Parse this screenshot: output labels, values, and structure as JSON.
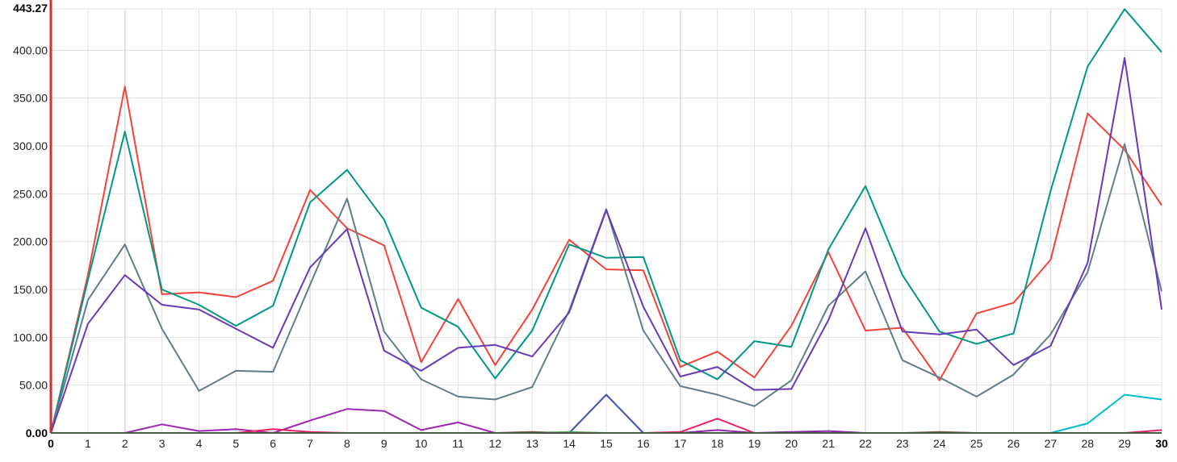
{
  "chart_data": {
    "type": "line",
    "title": "",
    "xlabel": "",
    "ylabel": "",
    "x": [
      0,
      1,
      2,
      3,
      4,
      5,
      6,
      7,
      8,
      9,
      10,
      11,
      12,
      13,
      14,
      15,
      16,
      17,
      18,
      19,
      20,
      21,
      22,
      23,
      24,
      25,
      26,
      27,
      28,
      29,
      30
    ],
    "xlim": [
      0,
      30
    ],
    "ylim": [
      0,
      443.27
    ],
    "y_max_label": "443.27",
    "y_ticks": [
      "0.00",
      "50.00",
      "100.00",
      "150.00",
      "200.00",
      "250.00",
      "300.00",
      "350.00",
      "400.00"
    ],
    "x_ticks": [
      "0",
      "1",
      "2",
      "3",
      "4",
      "5",
      "6",
      "7",
      "8",
      "9",
      "10",
      "11",
      "12",
      "13",
      "14",
      "15",
      "16",
      "17",
      "18",
      "19",
      "20",
      "21",
      "22",
      "23",
      "24",
      "25",
      "26",
      "27",
      "28",
      "29",
      "30"
    ],
    "grid": true,
    "series": [
      {
        "color": "#f44336",
        "values": [
          0,
          165,
          362,
          145,
          147,
          142,
          159,
          254,
          214,
          196,
          74,
          140,
          71,
          129,
          202,
          171,
          170,
          69,
          85,
          58,
          112,
          189,
          107,
          110,
          55,
          125,
          136,
          181,
          334,
          296,
          238
        ]
      },
      {
        "color": "#009688",
        "values": [
          0,
          160,
          315,
          150,
          134,
          112,
          133,
          241,
          275,
          223,
          131,
          111,
          57,
          107,
          197,
          183,
          184,
          76,
          56,
          96,
          90,
          192,
          258,
          165,
          106,
          93,
          104,
          253,
          383,
          443,
          398
        ]
      },
      {
        "color": "#607d8b",
        "values": [
          0,
          139,
          197,
          109,
          44,
          65,
          64,
          155,
          245,
          106,
          56,
          38,
          35,
          48,
          128,
          234,
          107,
          49,
          40,
          28,
          55,
          133,
          169,
          76,
          58,
          38,
          61,
          103,
          168,
          302,
          148
        ]
      },
      {
        "color": "#673ab7",
        "values": [
          0,
          114,
          165,
          134,
          129,
          109,
          89,
          173,
          213,
          86,
          65,
          89,
          92,
          80,
          126,
          233,
          132,
          59,
          69,
          45,
          46,
          118,
          214,
          106,
          103,
          108,
          71,
          91,
          178,
          392,
          129
        ]
      },
      {
        "color": "#9c27b0",
        "values": [
          0,
          0,
          0,
          9,
          2,
          4,
          0,
          13,
          25,
          23,
          3,
          11,
          0,
          0,
          0,
          0,
          0,
          0,
          0,
          0,
          0,
          0,
          0,
          0,
          0,
          0,
          0,
          0,
          0,
          0,
          0
        ]
      },
      {
        "color": "#3f51b5",
        "values": [
          0,
          0,
          0,
          0,
          0,
          0,
          0,
          0,
          0,
          0,
          0,
          0,
          0,
          0,
          0,
          40,
          0,
          0,
          0,
          0,
          0,
          0,
          0,
          0,
          0,
          0,
          0,
          0,
          0,
          0,
          0
        ]
      },
      {
        "color": "#e91e63",
        "values": [
          0,
          0,
          0,
          0,
          0,
          0,
          4,
          1,
          0,
          0,
          0,
          0,
          0,
          0,
          0,
          0,
          0,
          1,
          15,
          0,
          0,
          0,
          0,
          0,
          0,
          0,
          0,
          0,
          0,
          0,
          3
        ]
      },
      {
        "color": "#00bcd4",
        "values": [
          0,
          0,
          0,
          0,
          0,
          0,
          0,
          0,
          0,
          0,
          0,
          0,
          0,
          0,
          0,
          0,
          0,
          0,
          0,
          0,
          0,
          0,
          0,
          0,
          0,
          0,
          0,
          0,
          10,
          40,
          35
        ]
      },
      {
        "color": "#8e24aa",
        "values": [
          0,
          0,
          0,
          0,
          0,
          0,
          0,
          0,
          0,
          0,
          0,
          0,
          0,
          0,
          0,
          0,
          0,
          0,
          3,
          0,
          1,
          2,
          0,
          0,
          0,
          0,
          0,
          0,
          0,
          0,
          0
        ]
      },
      {
        "color": "#795548",
        "values": [
          0,
          0,
          0,
          0,
          0,
          0,
          0,
          0,
          0,
          0,
          0,
          0,
          0,
          1,
          0,
          0,
          0,
          0,
          0,
          0,
          0,
          0,
          0,
          0,
          1,
          0,
          0,
          0,
          0,
          0,
          0
        ]
      },
      {
        "color": "#4caf50",
        "values": [
          0,
          0,
          0,
          0,
          0,
          0,
          0,
          0,
          0,
          0,
          0,
          0,
          0,
          0,
          1,
          0,
          0,
          0,
          0,
          0,
          0,
          0,
          0,
          0,
          0,
          0,
          0,
          0,
          0,
          0,
          0
        ]
      }
    ],
    "colors": {
      "axis": "#d32f2f",
      "grid": "#e0e0e0",
      "grid_major": "#dcdcdc"
    }
  }
}
